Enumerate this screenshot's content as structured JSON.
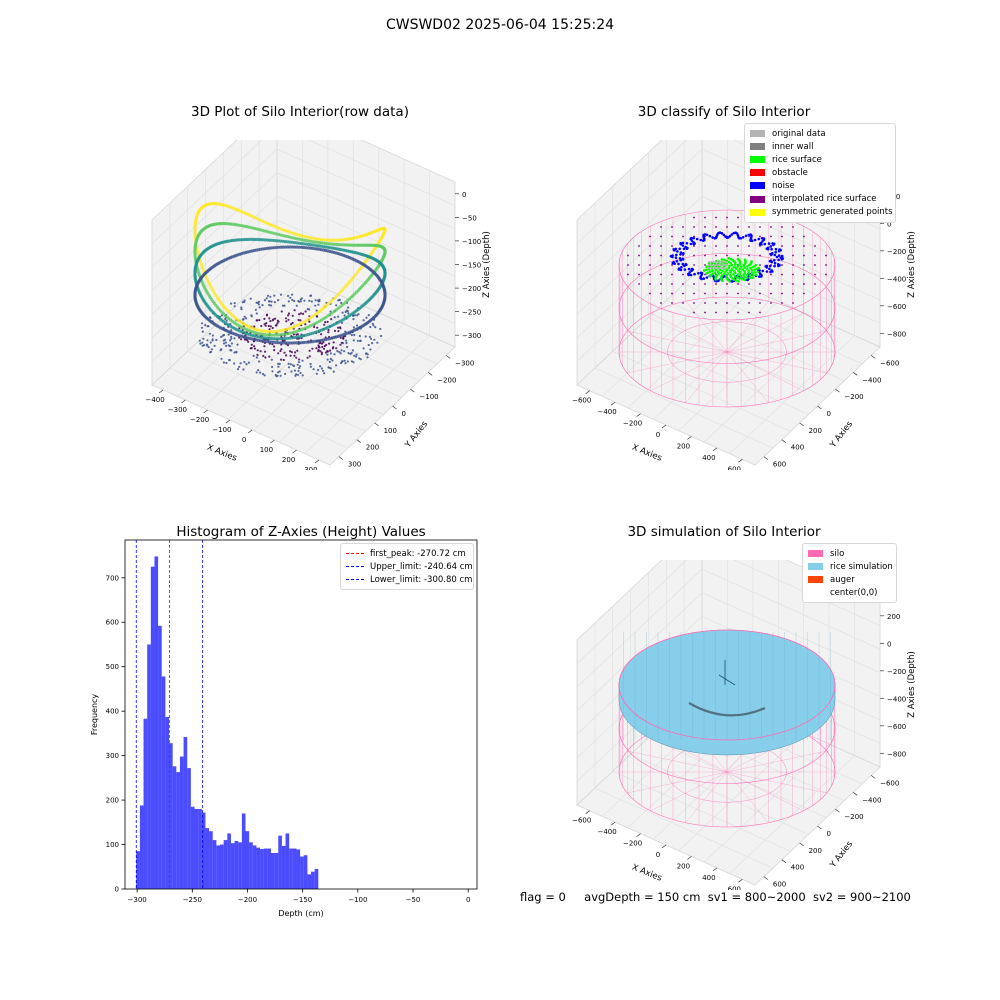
{
  "figure": {
    "suptitle": "CWSWD02 2025-06-04 15:25:24",
    "status": {
      "flag": "flag = 0",
      "avg": "avgDepth = 150 cm",
      "sv1": "sv1 = 800~2000",
      "sv2": "sv2 = 900~2100"
    }
  },
  "raw3d": {
    "title": "3D Plot of Silo Interior(row data)",
    "xlabel": "X Axies",
    "ylabel": "Y Axies",
    "zlabel": "Z Axies (Depth)",
    "xticks": [
      "−400",
      "−300",
      "−200",
      "−100",
      "0",
      "100",
      "200",
      "300"
    ],
    "yticks": [
      "−300",
      "−200",
      "−100",
      "0",
      "100",
      "200",
      "300"
    ],
    "zticks": [
      "0",
      "−50",
      "−100",
      "−150",
      "−200",
      "−250",
      "−300"
    ],
    "colormap": [
      "#fde725",
      "#5ec962",
      "#21918c",
      "#3b528b",
      "#440154"
    ]
  },
  "classify3d": {
    "title": "3D classify of Silo Interior",
    "xlabel": "X Axies",
    "ylabel": "Y Axies",
    "zlabel": "Z Axies (Depth)",
    "xticks": [
      "−600",
      "−400",
      "−200",
      "0",
      "200",
      "400",
      "600"
    ],
    "yticks": [
      "−600",
      "−400",
      "−200",
      "0",
      "200",
      "400",
      "600"
    ],
    "zticks": [
      "200",
      "0",
      "−200",
      "−400",
      "−600",
      "−800"
    ],
    "legend": [
      {
        "label": "original data",
        "color": "#b3b3b3"
      },
      {
        "label": "inner wall",
        "color": "#808080"
      },
      {
        "label": "rice surface",
        "color": "#00ff00"
      },
      {
        "label": "obstacle",
        "color": "#ff0000"
      },
      {
        "label": "noise",
        "color": "#0000ff"
      },
      {
        "label": "interpolated rice surface",
        "color": "#800080"
      },
      {
        "label": "symmetric generated points",
        "color": "#ffff00"
      }
    ]
  },
  "sim3d": {
    "title": "3D simulation of Silo Interior",
    "xlabel": "X Axies",
    "ylabel": "Y Axies",
    "zlabel": "Z Axies (Depth)",
    "xticks": [
      "−600",
      "−400",
      "−200",
      "0",
      "200",
      "400",
      "600"
    ],
    "yticks": [
      "−600",
      "−400",
      "−200",
      "0",
      "200",
      "400",
      "600"
    ],
    "zticks": [
      "200",
      "0",
      "−200",
      "−400",
      "−600",
      "−800"
    ],
    "legend": [
      {
        "label": "silo",
        "color": "#ff69b4"
      },
      {
        "label": "rice simulation",
        "color": "#87ceeb"
      },
      {
        "label": "auger",
        "color": "#ff4500"
      },
      {
        "label": "center(0,0)",
        "color": ""
      }
    ]
  },
  "chart_data": {
    "type": "bar",
    "title": "Histogram of Z-Axies (Height) Values",
    "xlabel": "Depth (cm)",
    "ylabel": "Frequency",
    "xlim": [
      -311,
      8
    ],
    "ylim": [
      0,
      785
    ],
    "xticks": [
      -300,
      -250,
      -200,
      -150,
      -100,
      -50,
      0
    ],
    "xtick_labels": [
      "−300",
      "−250",
      "−200",
      "−150",
      "−100",
      "−50",
      "0"
    ],
    "yticks": [
      0,
      100,
      200,
      300,
      400,
      500,
      600,
      700
    ],
    "bar_color": "#0000ff",
    "bin_start": -300.8,
    "bin_width": 3.3,
    "values": [
      85,
      188,
      383,
      550,
      725,
      748,
      592,
      478,
      387,
      328,
      276,
      263,
      298,
      342,
      272,
      185,
      180,
      180,
      172,
      137,
      130,
      110,
      98,
      100,
      110,
      125,
      103,
      108,
      105,
      170,
      130,
      105,
      98,
      93,
      90,
      91,
      91,
      81,
      81,
      120,
      97,
      125,
      91,
      91,
      89,
      73,
      76,
      33,
      39,
      45
    ],
    "lines": [
      {
        "label": "first_peak: -270.72 cm",
        "x": -270.72,
        "color": "#ff0000"
      },
      {
        "label": "Upper_limit: -240.64 cm",
        "x": -240.64,
        "color": "#0000ff"
      },
      {
        "label": "Lower_limit: -300.80 cm",
        "x": -300.8,
        "color": "#0000ff"
      }
    ]
  }
}
